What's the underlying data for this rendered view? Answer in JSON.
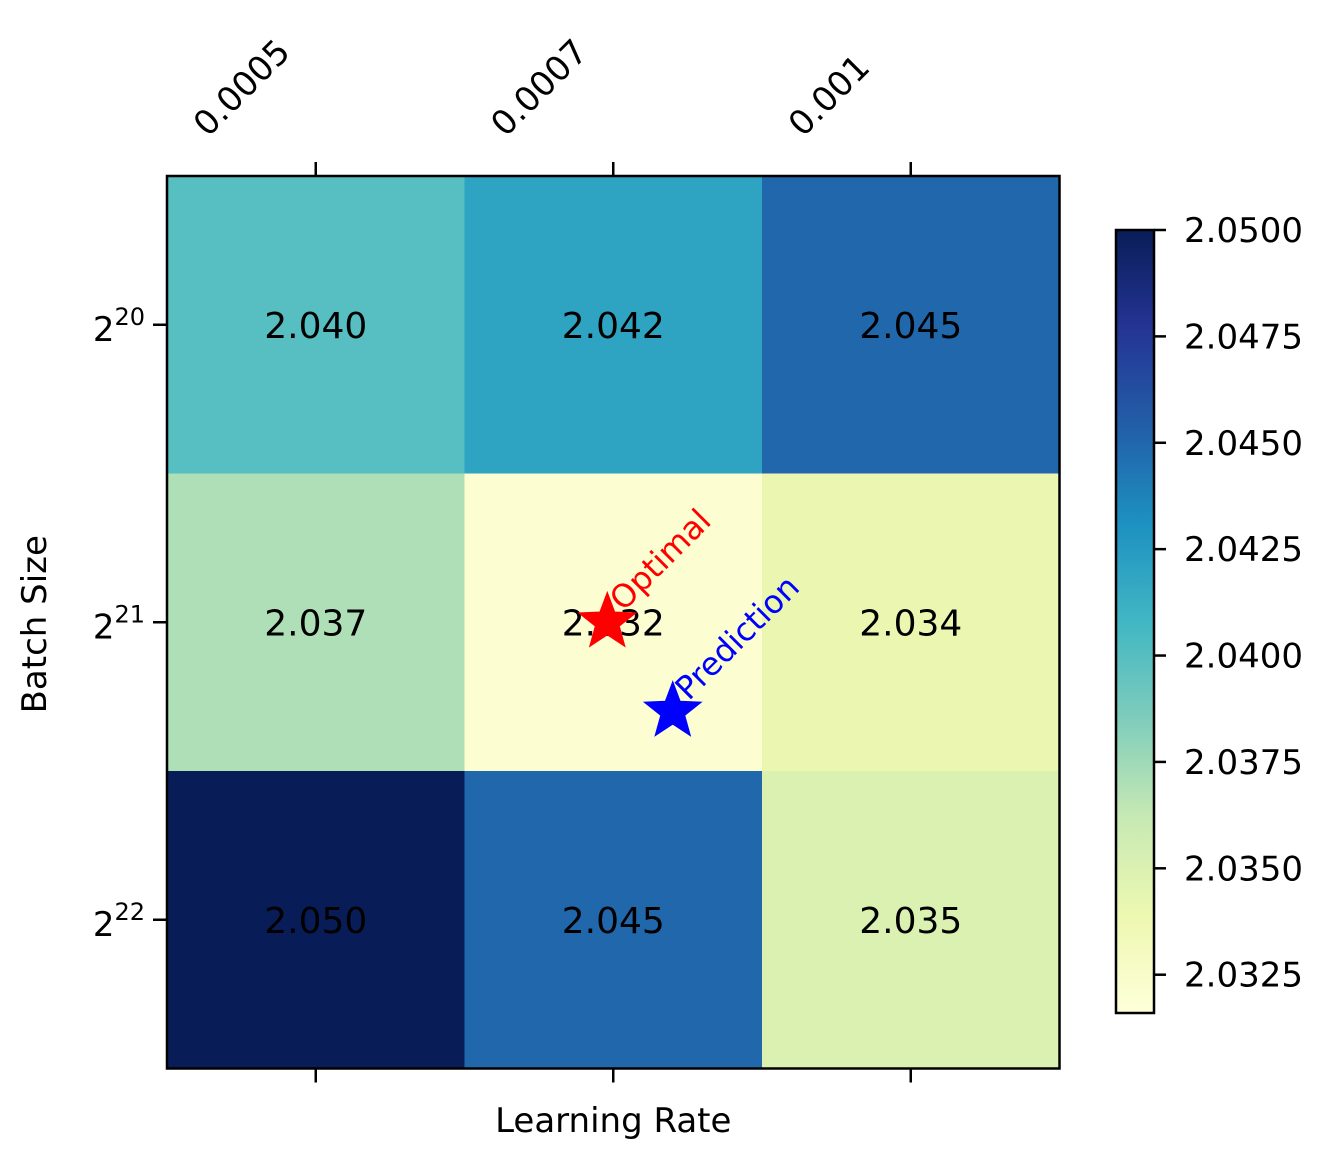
{
  "chart_data": {
    "type": "heatmap",
    "xlabel": "Learning Rate",
    "ylabel": "Batch Size",
    "x_categories": [
      "0.0005",
      "0.0007",
      "0.001"
    ],
    "y_categories": [
      {
        "base": "2",
        "exp": "20"
      },
      {
        "base": "2",
        "exp": "21"
      },
      {
        "base": "2",
        "exp": "22"
      }
    ],
    "values": [
      [
        2.04,
        2.042,
        2.045
      ],
      [
        2.037,
        2.032,
        2.034
      ],
      [
        2.05,
        2.045,
        2.035
      ]
    ],
    "cell_labels": [
      [
        "2.040",
        "2.042",
        "2.045"
      ],
      [
        "2.037",
        "2.032",
        "2.034"
      ],
      [
        "2.050",
        "2.045",
        "2.035"
      ]
    ],
    "colorbar": {
      "range": [
        2.0316,
        2.05
      ],
      "ticks": [
        "2.0325",
        "2.0350",
        "2.0375",
        "2.0400",
        "2.0425",
        "2.0450",
        "2.0475",
        "2.0500"
      ],
      "tick_values": [
        2.0325,
        2.035,
        2.0375,
        2.04,
        2.0425,
        2.045,
        2.0475,
        2.05
      ],
      "colormap": "YlGnBu"
    },
    "annotations": [
      {
        "label": "Optimal",
        "marker": "star",
        "color": "#ff0000",
        "x_index": 0.98,
        "y_index": 1.0
      },
      {
        "label": "Prediction",
        "marker": "star",
        "color": "#0000ff",
        "x_index": 1.2,
        "y_index": 1.3
      }
    ]
  }
}
